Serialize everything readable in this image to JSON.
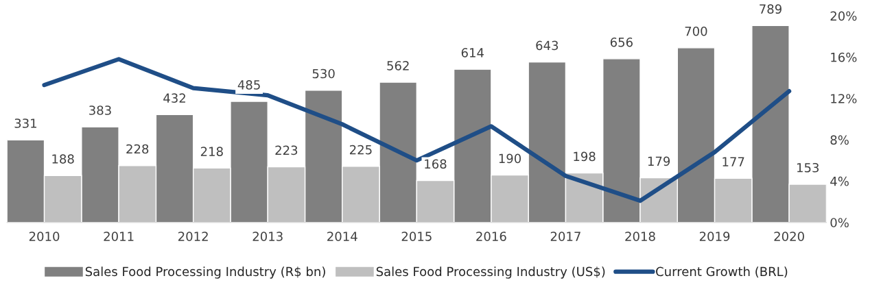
{
  "chart_data": {
    "type": "bar",
    "categories": [
      "2010",
      "2011",
      "2012",
      "2013",
      "2014",
      "2015",
      "2016",
      "2017",
      "2018",
      "2019",
      "2020"
    ],
    "series": [
      {
        "name": "Sales Food Processing Industry (R$ bn)",
        "color": "#808080",
        "values": [
          331,
          383,
          432,
          485,
          530,
          562,
          614,
          643,
          656,
          700,
          789
        ],
        "value_labels": [
          "331",
          "383",
          "432",
          "485",
          "530",
          "562",
          "614",
          "643",
          "656",
          "700",
          "789"
        ]
      },
      {
        "name": "Sales Food Processing Industry (US$)",
        "color": "#bfbfbf",
        "values": [
          188,
          228,
          218,
          223,
          225,
          168,
          190,
          198,
          179,
          177,
          153
        ],
        "value_labels": [
          "188",
          "228",
          "218",
          "223",
          "225",
          "168",
          "190",
          "198",
          "179",
          "177",
          "153"
        ]
      },
      {
        "name": "Current Growth (BRL)",
        "color": "#1f4e87",
        "type": "line",
        "axis": "y2",
        "values": [
          13.3,
          15.8,
          13.0,
          12.3,
          9.5,
          6.0,
          9.3,
          4.5,
          2.1,
          6.8,
          12.7
        ]
      }
    ],
    "y2lim": [
      0,
      20
    ],
    "y2ticks": [
      {
        "value": 0,
        "label": "0%"
      },
      {
        "value": 4,
        "label": "4%"
      },
      {
        "value": 8,
        "label": "8%"
      },
      {
        "value": 12,
        "label": "12%"
      },
      {
        "value": 16,
        "label": "16%"
      },
      {
        "value": 20,
        "label": "20%"
      }
    ],
    "legend": "bottom",
    "grid": false
  }
}
